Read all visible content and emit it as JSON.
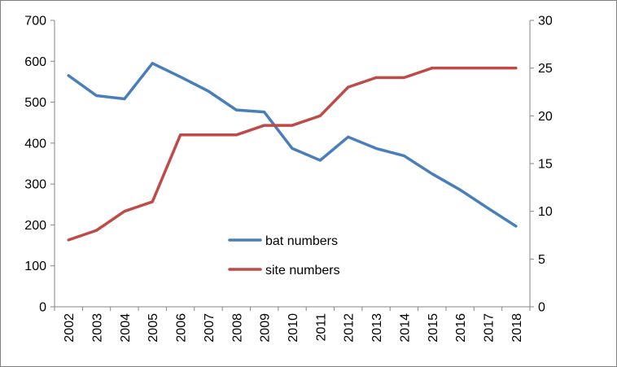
{
  "chart_data": {
    "type": "line",
    "categories": [
      "2002",
      "2003",
      "2004",
      "2005",
      "2006",
      "2007",
      "2008",
      "2009",
      "2010",
      "2011",
      "2012",
      "2013",
      "2014",
      "2015",
      "2016",
      "2017",
      "2018"
    ],
    "series": [
      {
        "name": "bat numbers",
        "axis": "left",
        "color": "#4a7ebb",
        "values": [
          565,
          516,
          508,
          595,
          562,
          527,
          481,
          476,
          387,
          358,
          415,
          387,
          369,
          325,
          286,
          241,
          197
        ]
      },
      {
        "name": "site numbers",
        "axis": "right",
        "color": "#be4b48",
        "values": [
          7,
          8,
          10,
          11,
          18,
          18,
          18,
          19,
          19,
          20,
          23,
          24,
          24,
          25,
          25,
          25,
          25
        ]
      }
    ],
    "yaxis_left": {
      "min": 0,
      "max": 700,
      "step": 100
    },
    "yaxis_right": {
      "min": 0,
      "max": 30,
      "step": 5
    },
    "title": "",
    "xlabel": "",
    "ylabel": "",
    "grid": false,
    "legend_position": "center-bottom inside plot"
  }
}
